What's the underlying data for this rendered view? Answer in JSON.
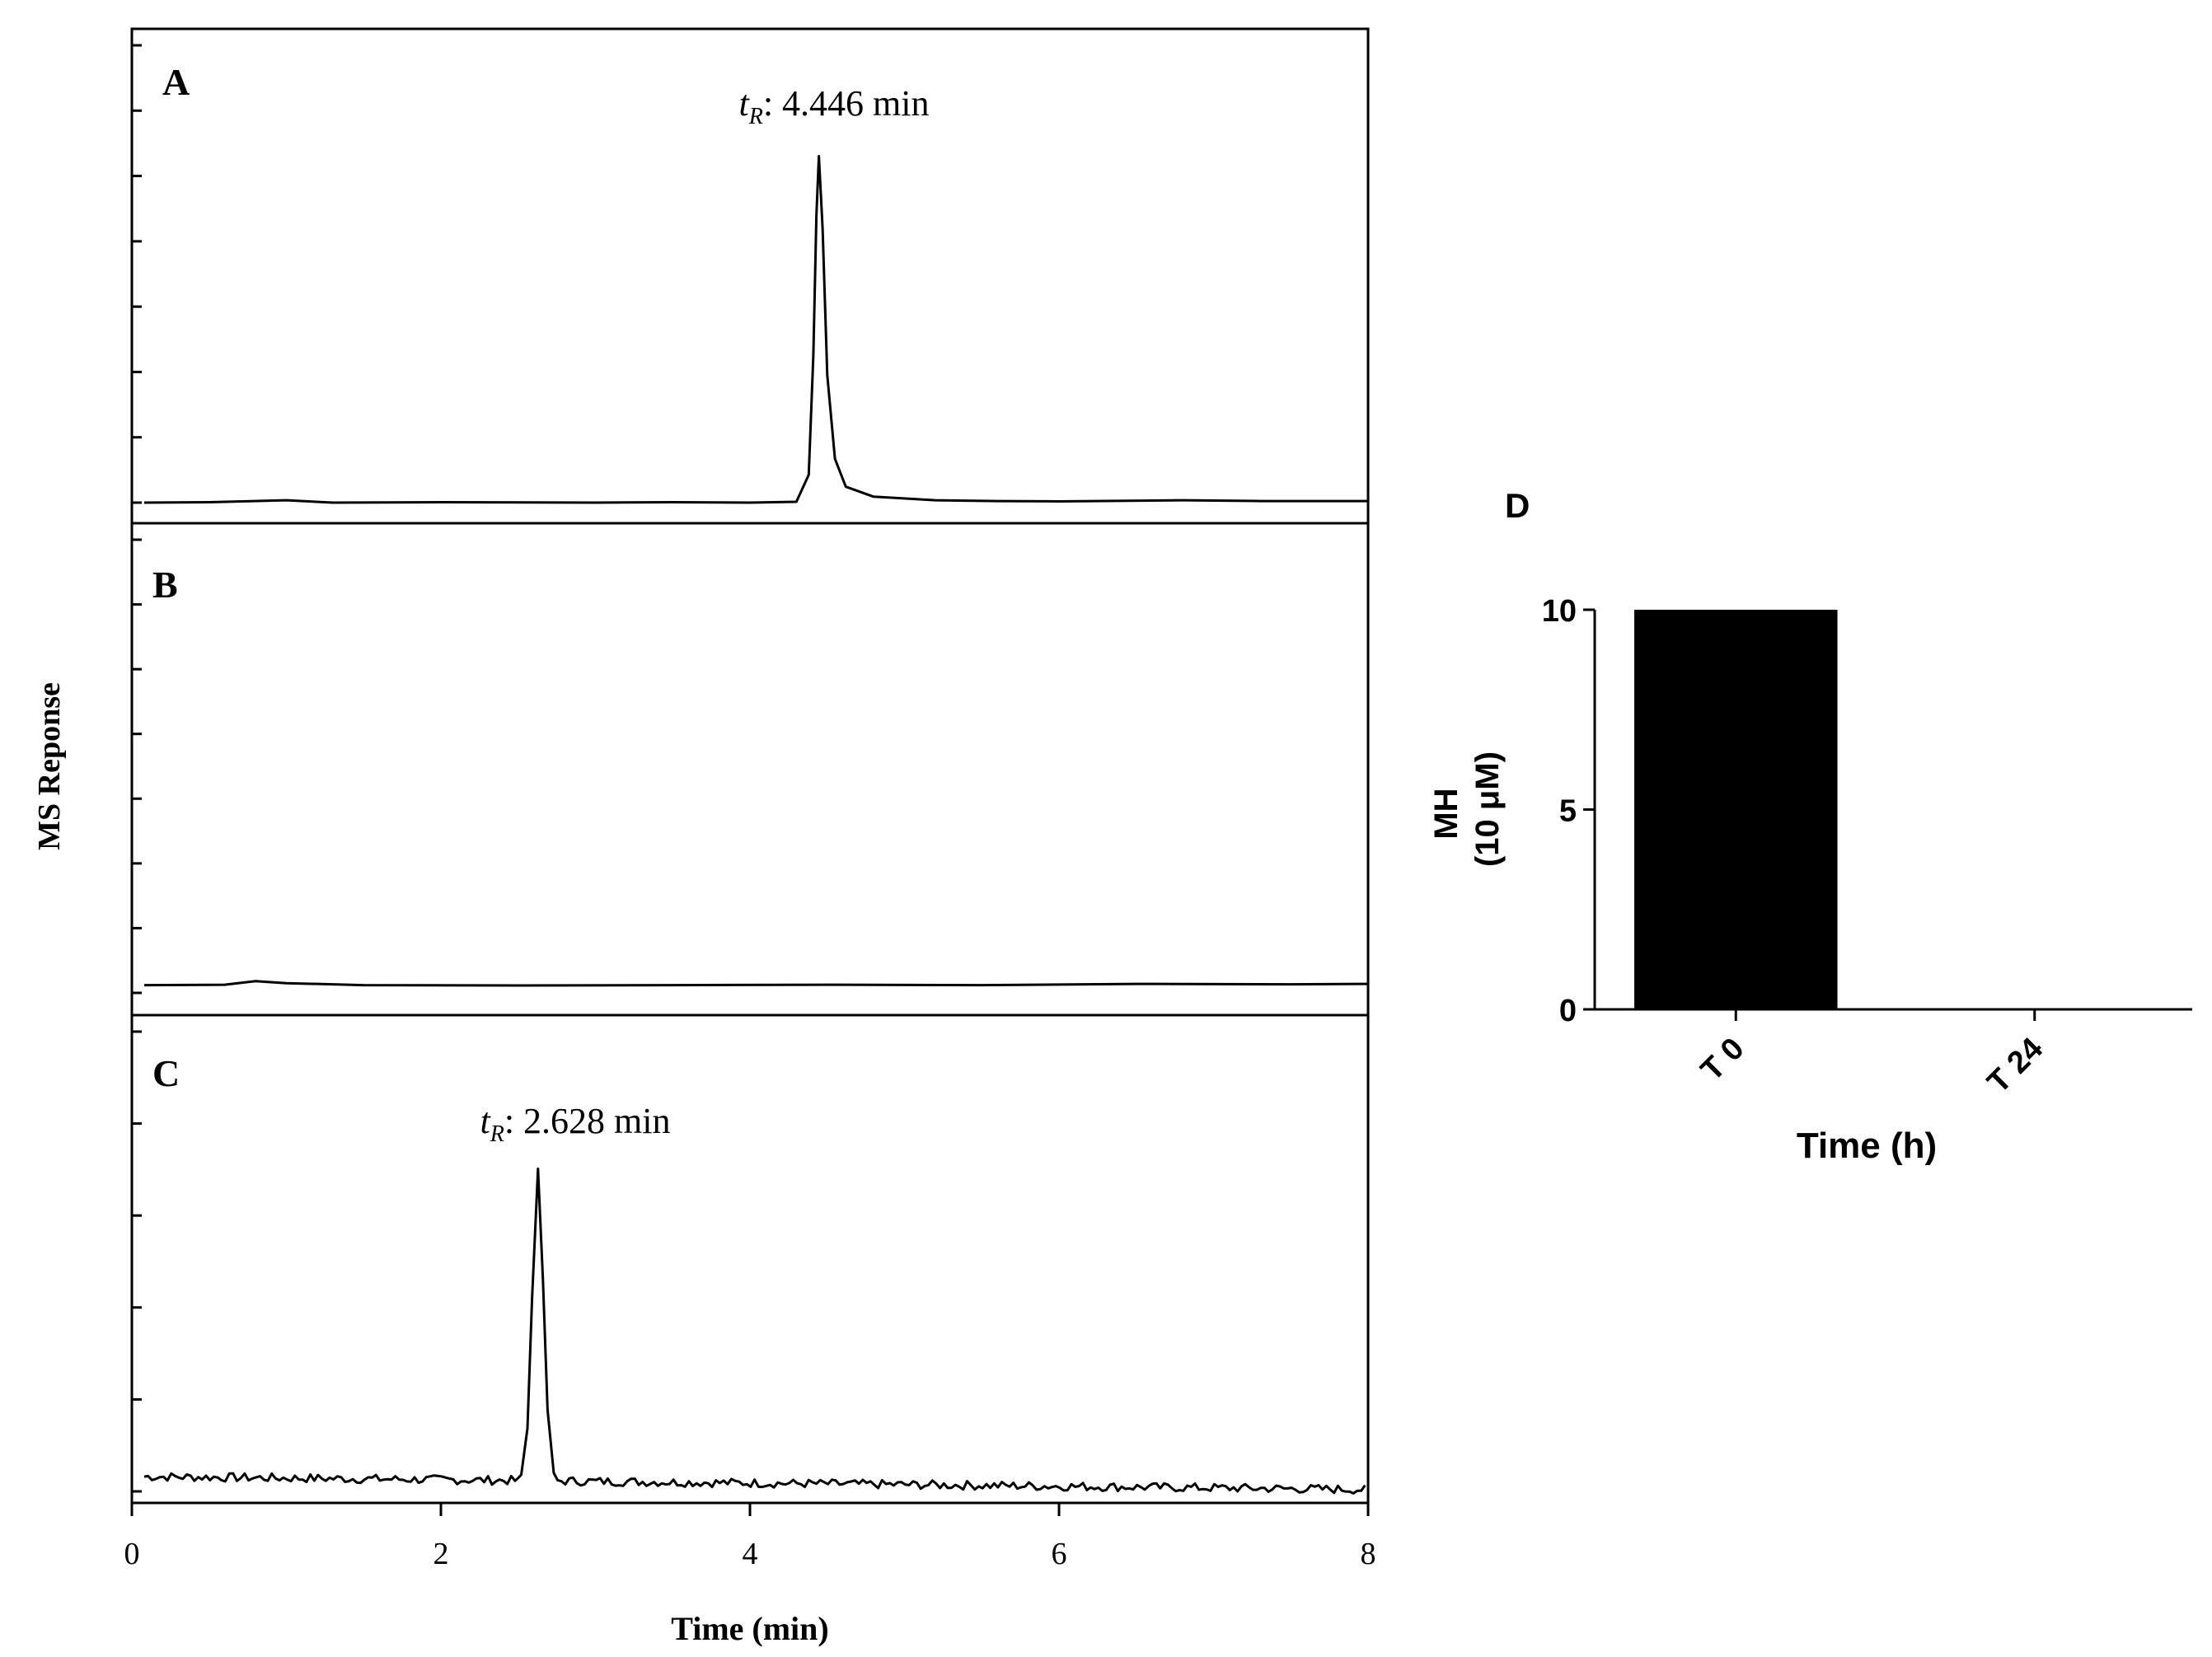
{
  "chart_data": [
    {
      "panel": "A",
      "type": "line",
      "annotation": {
        "prefix": "t",
        "subscript": "R",
        "suffix": ": 4.446 min"
      },
      "xlim": [
        0,
        8
      ],
      "peak": {
        "x": 4.446,
        "y": 0.9
      },
      "baseline": 0.03,
      "points": [
        [
          0.08,
          0.03
        ],
        [
          0.5,
          0.031
        ],
        [
          1.0,
          0.036
        ],
        [
          1.3,
          0.03
        ],
        [
          2.0,
          0.031
        ],
        [
          3.0,
          0.03
        ],
        [
          3.5,
          0.031
        ],
        [
          4.0,
          0.03
        ],
        [
          4.3,
          0.032
        ],
        [
          4.38,
          0.1
        ],
        [
          4.41,
          0.4
        ],
        [
          4.43,
          0.75
        ],
        [
          4.446,
          0.9
        ],
        [
          4.47,
          0.72
        ],
        [
          4.5,
          0.35
        ],
        [
          4.55,
          0.14
        ],
        [
          4.62,
          0.07
        ],
        [
          4.8,
          0.045
        ],
        [
          5.2,
          0.036
        ],
        [
          5.6,
          0.034
        ],
        [
          6.0,
          0.033
        ],
        [
          6.8,
          0.036
        ],
        [
          7.3,
          0.034
        ],
        [
          8.0,
          0.034
        ]
      ]
    },
    {
      "panel": "B",
      "type": "line",
      "annotation": null,
      "xlim": [
        0,
        8
      ],
      "points": [
        [
          0.08,
          0.05
        ],
        [
          0.6,
          0.051
        ],
        [
          0.8,
          0.06
        ],
        [
          1.0,
          0.055
        ],
        [
          1.5,
          0.05
        ],
        [
          2.5,
          0.049
        ],
        [
          3.5,
          0.05
        ],
        [
          4.5,
          0.051
        ],
        [
          5.5,
          0.05
        ],
        [
          6.5,
          0.053
        ],
        [
          7.5,
          0.052
        ],
        [
          8.0,
          0.053
        ]
      ]
    },
    {
      "panel": "C",
      "type": "line",
      "annotation": {
        "prefix": "t",
        "subscript": "R",
        "suffix": ": 2.628 min"
      },
      "xlim": [
        0,
        8
      ],
      "xticks": [
        0,
        2,
        4,
        6,
        8
      ],
      "xlabel": "Time (min)",
      "peak": {
        "x": 2.628,
        "y": 0.9
      },
      "noise": {
        "start": 0.08,
        "end": 8.0,
        "level_start": 0.07,
        "level_end": 0.035,
        "amplitude": 0.012
      },
      "points": [
        [
          2.52,
          0.075
        ],
        [
          2.56,
          0.2
        ],
        [
          2.59,
          0.55
        ],
        [
          2.628,
          0.9
        ],
        [
          2.66,
          0.6
        ],
        [
          2.69,
          0.25
        ],
        [
          2.73,
          0.08
        ]
      ]
    },
    {
      "panel": "D",
      "type": "bar",
      "categories": [
        "T 0",
        "T 24"
      ],
      "values": [
        10,
        0
      ],
      "ylim": [
        0,
        10
      ],
      "yticks": [
        0,
        5,
        10
      ],
      "ylabel_line1": "MH",
      "ylabel_line2": "(10 μM)",
      "xlabel": "Time (h)",
      "bar_color": "#000000"
    }
  ],
  "shared": {
    "ylabel": "MS Reponse",
    "xtick_labels": [
      "0",
      "2",
      "4",
      "6",
      "8"
    ]
  },
  "colors": {
    "line": "#000000",
    "background": "#ffffff"
  }
}
